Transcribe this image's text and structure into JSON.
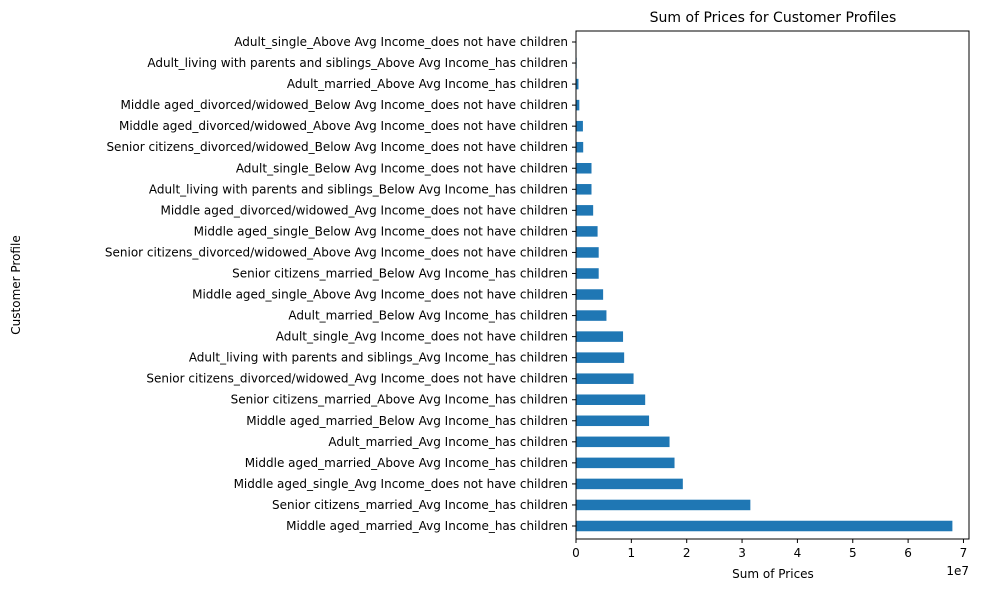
{
  "chart_data": {
    "type": "bar",
    "orientation": "horizontal",
    "title": "Sum of Prices for Customer Profiles",
    "xlabel": "Sum of Prices",
    "ylabel": "Customer Profile",
    "x_scale_label": "1e7",
    "xlim": [
      0,
      71000000
    ],
    "x_ticks": [
      0,
      10000000,
      20000000,
      30000000,
      40000000,
      50000000,
      60000000,
      70000000
    ],
    "x_tick_labels": [
      "0",
      "1",
      "2",
      "3",
      "4",
      "5",
      "6",
      "7"
    ],
    "grid": false,
    "bar_color": "#1f77b4",
    "categories": [
      "Middle aged_married_Avg Income_has children",
      "Senior citizens_married_Avg Income_has children",
      "Middle aged_single_Avg Income_does not have children",
      "Middle aged_married_Above Avg Income_has children",
      "Adult_married_Avg Income_has children",
      "Middle aged_married_Below Avg Income_has children",
      "Senior citizens_married_Above Avg Income_has children",
      "Senior citizens_divorced/widowed_Avg Income_does not have children",
      "Adult_living with parents and siblings_Avg Income_has children",
      "Adult_single_Avg Income_does not have children",
      "Adult_married_Below Avg Income_has children",
      "Middle aged_single_Above Avg Income_does not have children",
      "Senior citizens_married_Below Avg Income_has children",
      "Senior citizens_divorced/widowed_Above Avg Income_does not have children",
      "Middle aged_single_Below Avg Income_does not have children",
      "Middle aged_divorced/widowed_Avg Income_does not have children",
      "Adult_living with parents and siblings_Below Avg Income_has children",
      "Adult_single_Below Avg Income_does not have children",
      "Senior citizens_divorced/widowed_Below Avg Income_does not have children",
      "Middle aged_divorced/widowed_Above Avg Income_does not have children",
      "Middle aged_divorced/widowed_Below Avg Income_does not have children",
      "Adult_married_Above Avg Income_has children",
      "Adult_living with parents and siblings_Above Avg Income_has children",
      "Adult_single_Above Avg Income_does not have children"
    ],
    "values": [
      68000000,
      31500000,
      19300000,
      17800000,
      16900000,
      13200000,
      12500000,
      10400000,
      8700000,
      8500000,
      5500000,
      4900000,
      4100000,
      4100000,
      3900000,
      3100000,
      2800000,
      2800000,
      1300000,
      1250000,
      600000,
      450000,
      120000,
      90000
    ]
  }
}
